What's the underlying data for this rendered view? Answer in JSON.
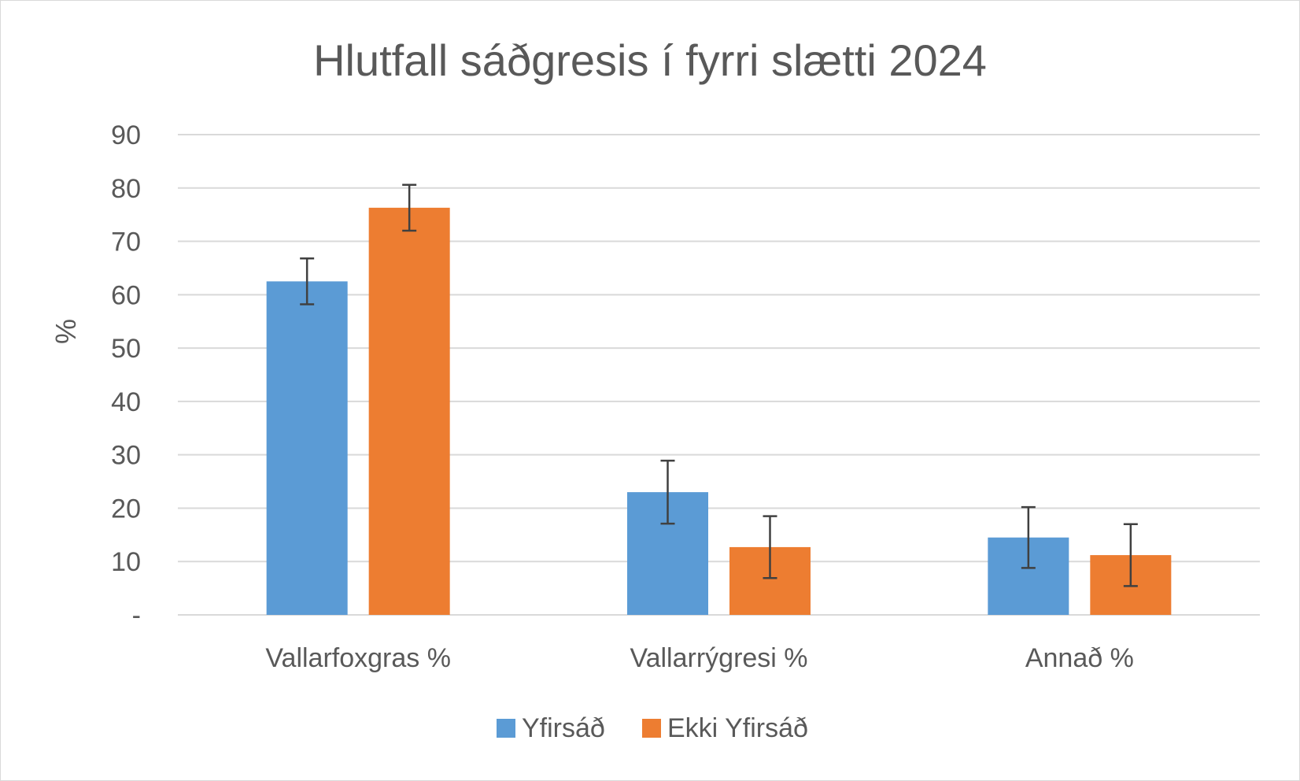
{
  "chart_data": {
    "type": "bar",
    "title": "Hlutfall sáðgresis í fyrri slætti 2024",
    "ylabel": "%",
    "xlabel": "",
    "categories": [
      "Vallarfoxgras %",
      "Vallarrýgresi %",
      "Annað %"
    ],
    "series": [
      {
        "name": "Yfirsáð",
        "color": "#5b9bd5",
        "values": [
          62.5,
          23.0,
          14.5
        ],
        "error": [
          4.3,
          5.9,
          5.7
        ]
      },
      {
        "name": "Ekki Yfirsáð",
        "color": "#ed7d31",
        "values": [
          76.3,
          12.7,
          11.2
        ],
        "error": [
          4.3,
          5.8,
          5.8
        ]
      }
    ],
    "ylim": [
      0,
      90
    ],
    "yticks": [
      0,
      10,
      20,
      30,
      40,
      50,
      60,
      70,
      80,
      90
    ],
    "ytick_labels": [
      "-",
      "10",
      "20",
      "30",
      "40",
      "50",
      "60",
      "70",
      "80",
      "90"
    ],
    "grid": true,
    "legend": "bottom"
  }
}
